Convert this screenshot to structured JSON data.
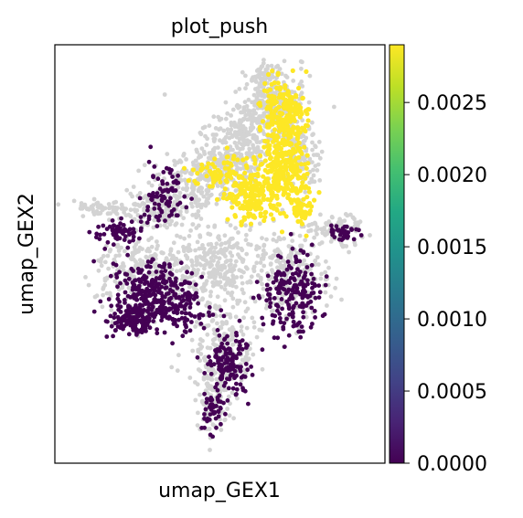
{
  "chart_data": {
    "type": "scatter",
    "title": "plot_push",
    "xlabel": "umap_GEX1",
    "ylabel": "umap_GEX2",
    "x_ticks_shown": false,
    "y_ticks_shown": false,
    "grid": false,
    "background_color": "#d3d3d3",
    "colorbar": {
      "colormap": "viridis",
      "range": [
        0.0,
        0.0029
      ],
      "ticks": [
        0.0,
        0.0005,
        0.001,
        0.0015,
        0.002,
        0.0025
      ],
      "tick_labels": [
        "0.0000",
        "0.0005",
        "0.0010",
        "0.0015",
        "0.0020",
        "0.0025"
      ]
    },
    "groups": [
      {
        "value": 0.0,
        "color": "#440154",
        "description_hint": "dark"
      },
      {
        "value": 0.0029,
        "color": "#fde725",
        "description_hint": "bright"
      }
    ]
  }
}
